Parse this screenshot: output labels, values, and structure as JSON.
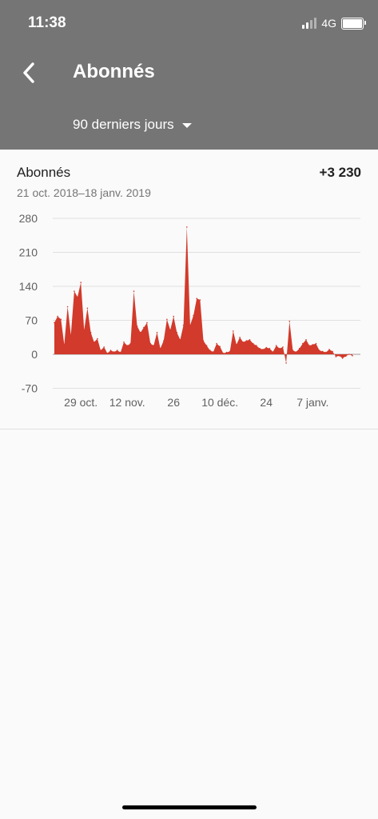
{
  "status_bar": {
    "time": "11:38",
    "network": "4G"
  },
  "header": {
    "title": "Abonnés",
    "period": "90 derniers jours",
    "back_icon": "chevron-left-icon",
    "caret_icon": "caret-down-icon"
  },
  "metric": {
    "label": "Abonnés",
    "value": "+3 230",
    "date_range": "21 oct. 2018–18 janv. 2019"
  },
  "colors": {
    "header_bg": "#757575",
    "series": "#d23a2b",
    "background": "#fafafa"
  },
  "chart_data": {
    "type": "area",
    "y_ticks": [
      "280",
      "210",
      "140",
      "70",
      "0",
      "-70"
    ],
    "ylim": [
      -70,
      280
    ],
    "x_tick_labels": [
      "29 oct.",
      "12 nov.",
      "26",
      "10 déc.",
      "24",
      "7 janv."
    ],
    "x_tick_days": [
      8,
      22,
      36,
      50,
      64,
      78
    ],
    "grid": true,
    "series": [
      {
        "values": [
          65,
          78,
          72,
          20,
          98,
          40,
          130,
          118,
          148,
          50,
          95,
          45,
          25,
          32,
          8,
          15,
          2,
          8,
          5,
          8,
          4,
          25,
          18,
          22,
          130,
          58,
          45,
          55,
          65,
          22,
          18,
          45,
          12,
          28,
          72,
          50,
          78,
          45,
          30,
          60,
          262,
          60,
          80,
          115,
          112,
          28,
          18,
          8,
          5,
          22,
          16,
          2,
          4,
          6,
          48,
          20,
          35,
          25,
          28,
          30,
          22,
          18,
          12,
          10,
          14,
          12,
          5,
          18,
          12,
          15,
          -18,
          68,
          8,
          5,
          12,
          22,
          30,
          18,
          20,
          22,
          8,
          6,
          4,
          10,
          6,
          -5,
          -3,
          -8,
          -4,
          0,
          -3
        ]
      }
    ]
  }
}
